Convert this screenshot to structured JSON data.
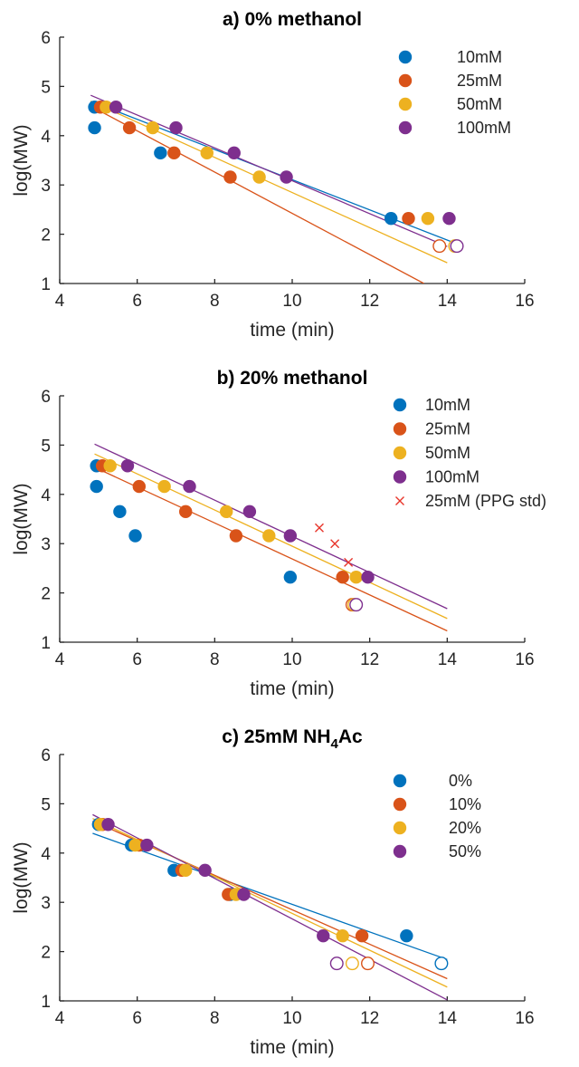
{
  "chart_data": [
    {
      "type": "scatter",
      "title": "a) 0% methanol",
      "xlabel": "time (min)",
      "ylabel": "log(MW)",
      "xlim": [
        4,
        16
      ],
      "ylim": [
        1,
        6
      ],
      "xticks": [
        "4",
        "6",
        "8",
        "10",
        "12",
        "14",
        "16"
      ],
      "yticks": [
        "1",
        "2",
        "3",
        "4",
        "5",
        "6"
      ],
      "legend_position": "top-right",
      "series": [
        {
          "name": "10mM",
          "color": "#0072BD",
          "filled": [
            [
              4.9,
              4.58
            ],
            [
              4.9,
              4.16
            ],
            [
              6.6,
              3.65
            ],
            [
              12.55,
              2.32
            ]
          ],
          "open": [],
          "fit": [
            [
              4.8,
              4.7
            ],
            [
              14.2,
              1.82
            ]
          ]
        },
        {
          "name": "25mM",
          "color": "#D95319",
          "filled": [
            [
              5.05,
              4.58
            ],
            [
              5.8,
              4.16
            ],
            [
              6.95,
              3.65
            ],
            [
              8.4,
              3.16
            ],
            [
              13.0,
              2.32
            ]
          ],
          "open": [
            [
              13.8,
              1.76
            ]
          ],
          "fit": [
            [
              4.8,
              4.6
            ],
            [
              13.4,
              1.0
            ]
          ]
        },
        {
          "name": "50mM",
          "color": "#EDB120",
          "filled": [
            [
              5.2,
              4.58
            ],
            [
              6.4,
              4.16
            ],
            [
              7.8,
              3.65
            ],
            [
              9.15,
              3.16
            ],
            [
              13.5,
              2.32
            ]
          ],
          "open": [
            [
              14.2,
              1.76
            ]
          ],
          "fit": [
            [
              4.8,
              4.7
            ],
            [
              14.0,
              1.42
            ]
          ]
        },
        {
          "name": "100mM",
          "color": "#7E2F8E",
          "filled": [
            [
              5.45,
              4.58
            ],
            [
              7.0,
              4.16
            ],
            [
              8.5,
              3.65
            ],
            [
              9.85,
              3.16
            ],
            [
              14.05,
              2.32
            ]
          ],
          "open": [
            [
              14.25,
              1.76
            ]
          ],
          "fit": [
            [
              4.8,
              4.82
            ],
            [
              14.0,
              1.75
            ]
          ]
        }
      ],
      "markers": []
    },
    {
      "type": "scatter",
      "title": "b) 20% methanol",
      "xlabel": "time (min)",
      "ylabel": "log(MW)",
      "xlim": [
        4,
        16
      ],
      "ylim": [
        1,
        6
      ],
      "xticks": [
        "4",
        "6",
        "8",
        "10",
        "12",
        "14",
        "16"
      ],
      "yticks": [
        "1",
        "2",
        "3",
        "4",
        "5",
        "6"
      ],
      "legend_position": "top-right",
      "series": [
        {
          "name": "10mM",
          "color": "#0072BD",
          "filled": [
            [
              4.95,
              4.58
            ],
            [
              4.95,
              4.16
            ],
            [
              5.55,
              3.65
            ],
            [
              5.95,
              3.16
            ],
            [
              9.95,
              2.32
            ]
          ],
          "open": [],
          "fit": null
        },
        {
          "name": "25mM",
          "color": "#D95319",
          "filled": [
            [
              5.1,
              4.58
            ],
            [
              6.05,
              4.16
            ],
            [
              7.25,
              3.65
            ],
            [
              8.55,
              3.16
            ],
            [
              11.3,
              2.32
            ]
          ],
          "open": [
            [
              11.55,
              1.76
            ]
          ],
          "fit": [
            [
              4.9,
              4.55
            ],
            [
              14.0,
              1.23
            ]
          ]
        },
        {
          "name": "50mM",
          "color": "#EDB120",
          "filled": [
            [
              5.3,
              4.58
            ],
            [
              6.7,
              4.16
            ],
            [
              8.3,
              3.65
            ],
            [
              9.4,
              3.16
            ],
            [
              11.65,
              2.32
            ]
          ],
          "open": [
            [
              11.6,
              1.76
            ]
          ],
          "fit": [
            [
              4.9,
              4.82
            ],
            [
              14.0,
              1.48
            ]
          ]
        },
        {
          "name": "100mM",
          "color": "#7E2F8E",
          "filled": [
            [
              5.75,
              4.58
            ],
            [
              7.35,
              4.16
            ],
            [
              8.9,
              3.65
            ],
            [
              9.95,
              3.16
            ],
            [
              11.95,
              2.32
            ]
          ],
          "open": [
            [
              11.65,
              1.76
            ]
          ],
          "fit": [
            [
              4.9,
              5.02
            ],
            [
              14.0,
              1.68
            ]
          ]
        },
        {
          "name": "25mM (PPG std)",
          "color": "#E8352B",
          "crosses": [
            [
              10.7,
              3.32
            ],
            [
              11.1,
              3.0
            ],
            [
              11.45,
              2.62
            ]
          ]
        }
      ],
      "markers": []
    },
    {
      "type": "scatter",
      "title": "c) 25mM NH",
      "title_sub": "4",
      "title_suffix": "Ac",
      "xlabel": "time (min)",
      "ylabel": "log(MW)",
      "xlim": [
        4,
        16
      ],
      "ylim": [
        1,
        6
      ],
      "xticks": [
        "4",
        "6",
        "8",
        "10",
        "12",
        "14",
        "16"
      ],
      "yticks": [
        "1",
        "2",
        "3",
        "4",
        "5",
        "6"
      ],
      "legend_position": "top-right",
      "series": [
        {
          "name": "0%",
          "color": "#0072BD",
          "filled": [
            [
              5.0,
              4.58
            ],
            [
              5.85,
              4.16
            ],
            [
              6.95,
              3.65
            ],
            [
              8.4,
              3.16
            ],
            [
              12.95,
              2.32
            ]
          ],
          "open": [
            [
              13.85,
              1.76
            ]
          ],
          "fit": [
            [
              4.85,
              4.4
            ],
            [
              14.0,
              1.84
            ]
          ]
        },
        {
          "name": "10%",
          "color": "#D95319",
          "filled": [
            [
              5.1,
              4.58
            ],
            [
              6.05,
              4.16
            ],
            [
              7.15,
              3.65
            ],
            [
              8.35,
              3.16
            ],
            [
              11.8,
              2.32
            ]
          ],
          "open": [
            [
              11.95,
              1.76
            ]
          ],
          "fit": [
            [
              4.85,
              4.65
            ],
            [
              14.0,
              1.45
            ]
          ]
        },
        {
          "name": "20%",
          "color": "#EDB120",
          "filled": [
            [
              5.05,
              4.58
            ],
            [
              5.95,
              4.16
            ],
            [
              7.25,
              3.65
            ],
            [
              8.55,
              3.16
            ],
            [
              11.3,
              2.32
            ]
          ],
          "open": [
            [
              11.55,
              1.76
            ]
          ],
          "fit": [
            [
              4.85,
              4.7
            ],
            [
              14.0,
              1.28
            ]
          ]
        },
        {
          "name": "50%",
          "color": "#7E2F8E",
          "filled": [
            [
              5.25,
              4.58
            ],
            [
              6.25,
              4.16
            ],
            [
              7.75,
              3.65
            ],
            [
              8.75,
              3.16
            ],
            [
              10.8,
              2.32
            ]
          ],
          "open": [
            [
              11.15,
              1.76
            ]
          ],
          "fit": [
            [
              4.85,
              4.78
            ],
            [
              14.0,
              1.02
            ]
          ]
        }
      ],
      "markers": []
    }
  ]
}
